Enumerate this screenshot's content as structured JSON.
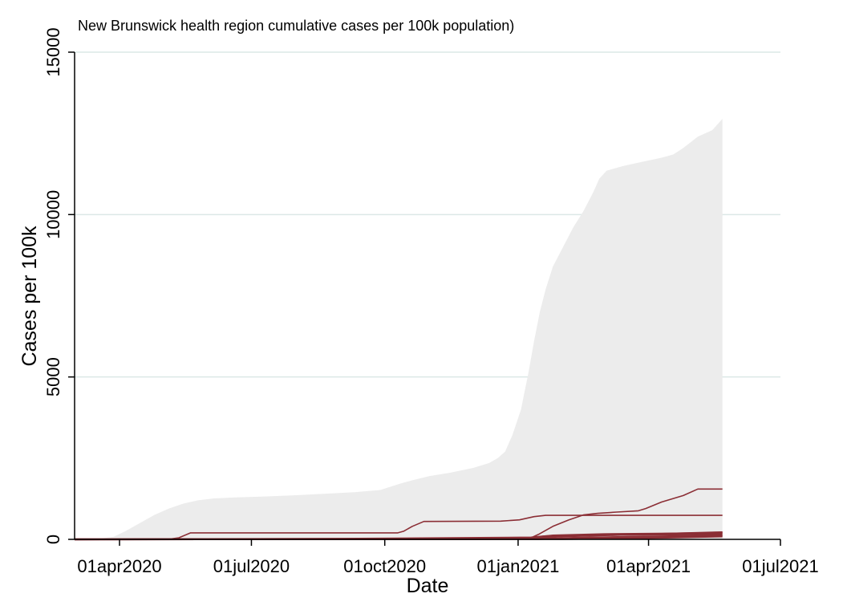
{
  "chart_data": {
    "type": "area",
    "title": "New Brunswick health region cumulative cases per 100k population)",
    "xlabel": "Date",
    "ylabel": "Cases per 100k",
    "xlim": [
      "2020-03-01",
      "2021-07-01"
    ],
    "ylim": [
      0,
      15000
    ],
    "y_ticks": [
      0,
      5000,
      10000,
      15000
    ],
    "x_ticks": [
      {
        "date": "2020-04-01",
        "label": "01apr2020"
      },
      {
        "date": "2020-07-01",
        "label": "01jul2020"
      },
      {
        "date": "2020-10-01",
        "label": "01oct2020"
      },
      {
        "date": "2021-01-01",
        "label": "01jan2021"
      },
      {
        "date": "2021-04-01",
        "label": "01apr2021"
      },
      {
        "date": "2021-07-01",
        "label": "01jul2021"
      }
    ],
    "grid": "horizontal",
    "legend": "none",
    "colors": {
      "background_area": "#ececec",
      "series_line": "#8b2e35",
      "grid": "#dce8e6",
      "axis": "#000000"
    },
    "background_area": {
      "x": [
        "2020-03-01",
        "2020-03-20",
        "2020-03-28",
        "2020-04-05",
        "2020-04-15",
        "2020-04-25",
        "2020-05-05",
        "2020-05-15",
        "2020-05-25",
        "2020-06-05",
        "2020-06-20",
        "2020-07-10",
        "2020-08-01",
        "2020-08-20",
        "2020-09-10",
        "2020-09-28",
        "2020-10-05",
        "2020-10-12",
        "2020-10-20",
        "2020-11-01",
        "2020-11-15",
        "2020-12-01",
        "2020-12-12",
        "2020-12-18",
        "2020-12-23",
        "2020-12-28",
        "2021-01-03",
        "2021-01-05",
        "2021-01-08",
        "2021-01-12",
        "2021-01-16",
        "2021-01-20",
        "2021-01-25",
        "2021-02-01",
        "2021-02-08",
        "2021-02-15",
        "2021-02-22",
        "2021-02-26",
        "2021-03-03",
        "2021-03-15",
        "2021-03-25",
        "2021-04-10",
        "2021-04-18",
        "2021-04-25",
        "2021-05-05",
        "2021-05-15",
        "2021-05-22"
      ],
      "y": [
        0,
        30,
        80,
        250,
        500,
        750,
        950,
        1100,
        1200,
        1260,
        1290,
        1320,
        1360,
        1400,
        1450,
        1520,
        1620,
        1720,
        1820,
        1950,
        2050,
        2200,
        2350,
        2500,
        2700,
        3200,
        4000,
        4450,
        5100,
        6100,
        7000,
        7700,
        8400,
        9000,
        9600,
        10100,
        10700,
        11100,
        11350,
        11500,
        11600,
        11750,
        11850,
        12050,
        12400,
        12600,
        12950
      ]
    },
    "series": [
      {
        "x": [
          "2020-03-01",
          "2020-05-05",
          "2020-05-12",
          "2020-05-20",
          "2020-10-10",
          "2020-10-14",
          "2020-10-20",
          "2020-10-28",
          "2020-12-20",
          "2021-01-02",
          "2021-01-12",
          "2021-01-20",
          "2021-05-22"
        ],
        "values": [
          0,
          5,
          50,
          200,
          200,
          250,
          400,
          550,
          560,
          600,
          700,
          740,
          740
        ]
      },
      {
        "x": [
          "2020-03-01",
          "2021-01-08",
          "2021-01-15",
          "2021-01-25",
          "2021-02-05",
          "2021-02-15",
          "2021-02-25",
          "2021-03-10",
          "2021-03-25",
          "2021-03-30",
          "2021-04-10",
          "2021-04-25",
          "2021-05-05",
          "2021-05-22"
        ],
        "values": [
          0,
          10,
          150,
          400,
          600,
          750,
          800,
          840,
          880,
          950,
          1150,
          1350,
          1550,
          1550
        ]
      },
      {
        "x": [
          "2020-03-01",
          "2020-09-01",
          "2020-11-15",
          "2021-01-10",
          "2021-01-20",
          "2021-02-20",
          "2021-05-22"
        ],
        "values": [
          0,
          20,
          40,
          60,
          100,
          130,
          160
        ]
      },
      {
        "x": [
          "2020-03-01",
          "2020-12-01",
          "2021-01-10",
          "2021-01-25",
          "2021-03-01",
          "2021-04-15",
          "2021-05-22"
        ],
        "values": [
          0,
          20,
          50,
          120,
          160,
          180,
          200
        ]
      },
      {
        "x": [
          "2020-03-01",
          "2020-12-01",
          "2021-01-15",
          "2021-01-30",
          "2021-03-15",
          "2021-05-22"
        ],
        "values": [
          0,
          10,
          30,
          90,
          140,
          220
        ]
      },
      {
        "x": [
          "2020-03-01",
          "2021-01-15",
          "2021-02-10",
          "2021-03-20",
          "2021-05-22"
        ],
        "values": [
          0,
          10,
          50,
          80,
          120
        ]
      },
      {
        "x": [
          "2020-03-01",
          "2021-02-01",
          "2021-04-01",
          "2021-05-22"
        ],
        "values": [
          0,
          10,
          40,
          90
        ]
      }
    ]
  }
}
